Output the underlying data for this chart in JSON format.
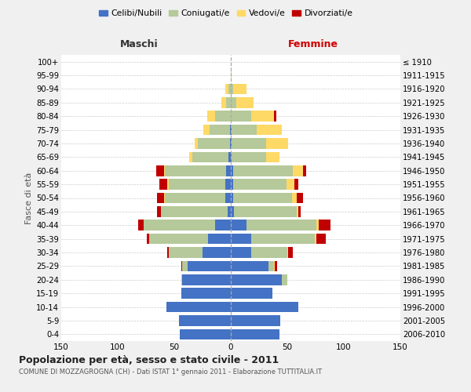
{
  "age_groups": [
    "0-4",
    "5-9",
    "10-14",
    "15-19",
    "20-24",
    "25-29",
    "30-34",
    "35-39",
    "40-44",
    "45-49",
    "50-54",
    "55-59",
    "60-64",
    "65-69",
    "70-74",
    "75-79",
    "80-84",
    "85-89",
    "90-94",
    "95-99",
    "100+"
  ],
  "birth_years": [
    "2006-2010",
    "2001-2005",
    "1996-2000",
    "1991-1995",
    "1986-1990",
    "1981-1985",
    "1976-1980",
    "1971-1975",
    "1966-1970",
    "1961-1965",
    "1956-1960",
    "1951-1955",
    "1946-1950",
    "1941-1945",
    "1936-1940",
    "1931-1935",
    "1926-1930",
    "1921-1925",
    "1916-1920",
    "1911-1915",
    "≤ 1910"
  ],
  "male": {
    "celibi": [
      45,
      46,
      57,
      44,
      43,
      38,
      25,
      20,
      14,
      3,
      5,
      5,
      4,
      2,
      1,
      1,
      0,
      0,
      0,
      0,
      0
    ],
    "coniugati": [
      0,
      0,
      0,
      0,
      1,
      5,
      30,
      52,
      63,
      59,
      53,
      50,
      54,
      32,
      28,
      18,
      14,
      4,
      2,
      0,
      0
    ],
    "vedovi": [
      0,
      0,
      0,
      0,
      0,
      0,
      0,
      0,
      0,
      0,
      1,
      1,
      1,
      3,
      3,
      5,
      7,
      4,
      3,
      0,
      0
    ],
    "divorziati": [
      0,
      0,
      0,
      0,
      0,
      1,
      1,
      2,
      5,
      3,
      6,
      7,
      7,
      0,
      0,
      0,
      0,
      0,
      0,
      0,
      0
    ]
  },
  "female": {
    "nubili": [
      43,
      44,
      60,
      37,
      45,
      33,
      18,
      18,
      14,
      3,
      2,
      2,
      2,
      1,
      1,
      1,
      0,
      0,
      0,
      0,
      0
    ],
    "coniugate": [
      0,
      0,
      0,
      0,
      5,
      5,
      32,
      56,
      62,
      55,
      52,
      47,
      53,
      30,
      30,
      22,
      18,
      5,
      2,
      0,
      0
    ],
    "vedove": [
      0,
      0,
      0,
      0,
      0,
      1,
      1,
      2,
      2,
      2,
      4,
      7,
      9,
      12,
      20,
      22,
      20,
      15,
      12,
      1,
      0
    ],
    "divorziate": [
      0,
      0,
      0,
      0,
      0,
      2,
      4,
      8,
      10,
      2,
      6,
      4,
      3,
      0,
      0,
      0,
      2,
      0,
      0,
      0,
      0
    ]
  },
  "colors": {
    "celibi": "#4472C4",
    "coniugati": "#B5C99A",
    "vedovi": "#FFD966",
    "divorziati": "#C00000"
  },
  "title": "Popolazione per età, sesso e stato civile - 2011",
  "subtitle": "COMUNE DI MOZZAGROGNA (CH) - Dati ISTAT 1° gennaio 2011 - Elaborazione TUTTITALIA.IT",
  "xlim": 150,
  "xlabel_left": "Maschi",
  "xlabel_right": "Femmine",
  "ylabel_left": "Fasce di età",
  "background_color": "#f0f0f0",
  "plot_bg_color": "#ffffff",
  "legend_labels": [
    "Celibi/Nubili",
    "Coniugati/e",
    "Vedovi/e",
    "Divorziati/e"
  ],
  "grid_color": "#cccccc"
}
